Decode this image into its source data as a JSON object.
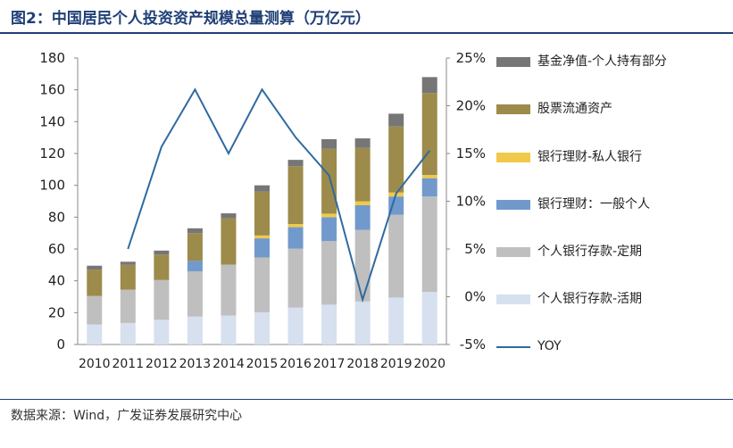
{
  "header": {
    "title": "图2：中国居民个人投资资产规模总量测算（万亿元）"
  },
  "footer": {
    "source": "数据来源：Wind，广发证券发展研究中心"
  },
  "chart_data": {
    "type": "bar",
    "stacked": true,
    "title": "图2：中国居民个人投资资产规模总量测算（万亿元）",
    "categories": [
      "2010",
      "2011",
      "2012",
      "2013",
      "2014",
      "2015",
      "2016",
      "2017",
      "2018",
      "2019",
      "2020"
    ],
    "y_left": {
      "lim": [
        0,
        180
      ],
      "ticks": [
        "0",
        "20",
        "40",
        "60",
        "80",
        "100",
        "120",
        "140",
        "160",
        "180"
      ]
    },
    "y_right": {
      "lim": [
        -5,
        25
      ],
      "ticks": [
        "-5%",
        "0%",
        "5%",
        "10%",
        "15%",
        "20%",
        "25%"
      ]
    },
    "grid": false,
    "legend_position": "right",
    "series": [
      {
        "name": "个人银行存款-活期",
        "color": "#d6e0ef",
        "values": [
          12.5,
          13.5,
          15.5,
          17.5,
          18.2,
          20.2,
          23.2,
          25.0,
          27.0,
          29.5,
          33.0
        ]
      },
      {
        "name": "个人银行存款-定期",
        "color": "#bfbfbf",
        "values": [
          18.0,
          21.0,
          25.0,
          28.5,
          32.0,
          34.5,
          37.0,
          40.0,
          45.0,
          52.0,
          60.0
        ]
      },
      {
        "name": "银行理财：一般个人",
        "color": "#7199cc",
        "values": [
          0,
          0,
          0,
          6.5,
          0,
          12.0,
          13.5,
          15.0,
          15.5,
          11.5,
          11.5
        ]
      },
      {
        "name": "银行理财-私人银行",
        "color": "#f0c94a",
        "values": [
          0,
          0,
          0,
          0,
          0,
          1.8,
          2.0,
          2.2,
          2.5,
          2.5,
          2.0
        ]
      },
      {
        "name": "股票流通资产",
        "color": "#9c8b4a",
        "values": [
          16.5,
          15.5,
          16.0,
          17.5,
          29.0,
          27.5,
          36.3,
          40.8,
          33.5,
          41.5,
          51.5
        ]
      },
      {
        "name": "基金净值-个人持有部分",
        "color": "#767676",
        "values": [
          2.5,
          2.0,
          2.5,
          3.0,
          3.2,
          4.0,
          4.0,
          6.0,
          6.0,
          8.0,
          10.0
        ]
      }
    ],
    "line_series": {
      "name": "YOY",
      "color": "#2f6aa0",
      "axis": "right",
      "categories": [
        "2011",
        "2012",
        "2013",
        "2014",
        "2015",
        "2016",
        "2017",
        "2018",
        "2019",
        "2020"
      ],
      "values": [
        5.0,
        15.7,
        21.7,
        15.0,
        21.7,
        16.7,
        12.7,
        -0.3,
        10.8,
        15.3
      ]
    },
    "legend_order": [
      "基金净值-个人持有部分",
      "股票流通资产",
      "银行理财-私人银行",
      "银行理财：一般个人",
      "个人银行存款-定期",
      "个人银行存款-活期",
      "YOY"
    ]
  }
}
